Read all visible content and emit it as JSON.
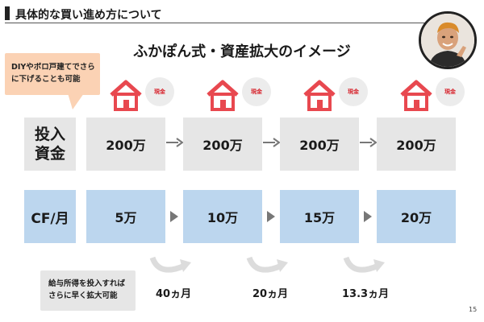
{
  "header": {
    "title": "具体的な買い進め方について"
  },
  "slide": {
    "title": "ふかぽん式・資産拡大のイメージ",
    "callout": "DIYやボロ戸建てでさらに下げることも可能",
    "cash_label": "現金",
    "rows": {
      "investment": {
        "label_line1": "投入",
        "label_line2": "資金",
        "values": [
          "200万",
          "200万",
          "200万",
          "200万"
        ]
      },
      "cashflow": {
        "label": "CF/月",
        "values": [
          "5万",
          "10万",
          "15万",
          "20万"
        ]
      }
    },
    "durations": [
      "40ヵ月",
      "20ヵ月",
      "13.3ヵ月"
    ],
    "note": "給与所得を投入すればさらに早く拡大可能",
    "page_number": "15"
  },
  "colors": {
    "house": "#e8484f",
    "cash_text": "#d7262f",
    "grey_cell": "#e6e6e6",
    "blue_cell": "#bcd6ee",
    "callout": "#fbd2b4"
  }
}
